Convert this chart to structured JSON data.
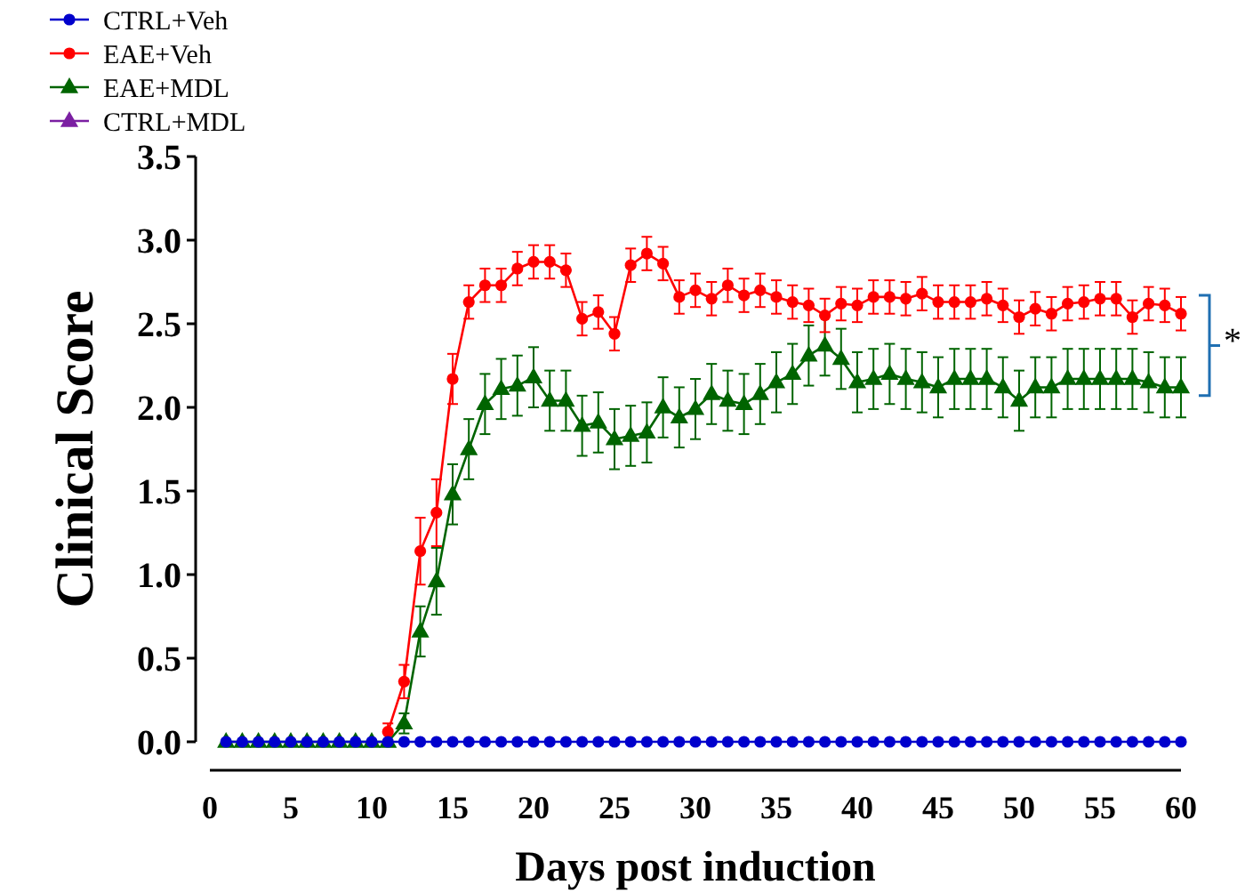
{
  "chart_data": {
    "type": "line",
    "xlabel": "Days post induction",
    "ylabel": "Clinical Score",
    "x": [
      1,
      2,
      3,
      4,
      5,
      6,
      7,
      8,
      9,
      10,
      11,
      12,
      13,
      14,
      15,
      16,
      17,
      18,
      19,
      20,
      21,
      22,
      23,
      24,
      25,
      26,
      27,
      28,
      29,
      30,
      31,
      32,
      33,
      34,
      35,
      36,
      37,
      38,
      39,
      40,
      41,
      42,
      43,
      44,
      45,
      46,
      47,
      48,
      49,
      50,
      51,
      52,
      53,
      54,
      55,
      56,
      57,
      58,
      59,
      60
    ],
    "xlim": [
      0,
      60
    ],
    "xticks": [
      0,
      5,
      10,
      15,
      20,
      25,
      30,
      35,
      40,
      45,
      50,
      55,
      60
    ],
    "ylim": [
      0,
      3.5
    ],
    "yticks": [
      {
        "value": 0,
        "label": "0.0"
      },
      {
        "value": 0.5,
        "label": "0.5"
      },
      {
        "value": 1,
        "label": "1.0"
      },
      {
        "value": 1.5,
        "label": "1.5"
      },
      {
        "value": 2,
        "label": "2.0"
      },
      {
        "value": 2.5,
        "label": "2.5"
      },
      {
        "value": 3,
        "label": "3.0"
      },
      {
        "value": 3.5,
        "label": "3.5"
      }
    ],
    "grid": false,
    "legend": "top left",
    "line_style": "solid",
    "annotations": [
      "*"
    ],
    "series": [
      {
        "name": "CTRL+Veh",
        "color": "#0000cc",
        "marker": "circle",
        "values": [
          0,
          0,
          0,
          0,
          0,
          0,
          0,
          0,
          0,
          0,
          0,
          0,
          0,
          0,
          0,
          0,
          0,
          0,
          0,
          0,
          0,
          0,
          0,
          0,
          0,
          0,
          0,
          0,
          0,
          0,
          0,
          0,
          0,
          0,
          0,
          0,
          0,
          0,
          0,
          0,
          0,
          0,
          0,
          0,
          0,
          0,
          0,
          0,
          0,
          0,
          0,
          0,
          0,
          0,
          0,
          0,
          0,
          0,
          0,
          0
        ]
      },
      {
        "name": "EAE+Veh",
        "color": "#ff0000",
        "marker": "circle",
        "values": [
          null,
          null,
          null,
          null,
          null,
          null,
          null,
          null,
          null,
          null,
          0.06,
          0.36,
          1.14,
          1.37,
          2.17,
          2.63,
          2.73,
          2.73,
          2.83,
          2.87,
          2.87,
          2.82,
          2.53,
          2.57,
          2.44,
          2.85,
          2.92,
          2.86,
          2.66,
          2.7,
          2.65,
          2.73,
          2.67,
          2.7,
          2.66,
          2.63,
          2.61,
          2.55,
          2.62,
          2.61,
          2.66,
          2.66,
          2.65,
          2.68,
          2.63,
          2.63,
          2.63,
          2.65,
          2.61,
          2.54,
          2.59,
          2.56,
          2.62,
          2.63,
          2.65,
          2.65,
          2.54,
          2.62,
          2.61,
          2.56
        ],
        "errors": [
          null,
          null,
          null,
          null,
          null,
          null,
          null,
          null,
          null,
          null,
          0.05,
          0.1,
          0.2,
          0.2,
          0.15,
          0.1,
          0.1,
          0.1,
          0.1,
          0.1,
          0.1,
          0.1,
          0.1,
          0.1,
          0.1,
          0.1,
          0.1,
          0.1,
          0.1,
          0.1,
          0.1,
          0.1,
          0.1,
          0.1,
          0.1,
          0.1,
          0.1,
          0.1,
          0.1,
          0.1,
          0.1,
          0.1,
          0.1,
          0.1,
          0.1,
          0.1,
          0.1,
          0.1,
          0.1,
          0.1,
          0.1,
          0.1,
          0.1,
          0.1,
          0.1,
          0.1,
          0.1,
          0.1,
          0.1,
          0.1
        ]
      },
      {
        "name": "EAE+MDL",
        "color": "#006400",
        "marker": "triangle",
        "values": [
          0,
          0,
          0,
          0,
          0,
          0,
          0,
          0,
          0,
          0,
          0,
          0.11,
          0.66,
          0.96,
          1.48,
          1.75,
          2.02,
          2.11,
          2.13,
          2.18,
          2.04,
          2.04,
          1.89,
          1.91,
          1.81,
          1.83,
          1.85,
          2.0,
          1.94,
          1.99,
          2.08,
          2.04,
          2.02,
          2.08,
          2.15,
          2.2,
          2.31,
          2.37,
          2.29,
          2.15,
          2.17,
          2.2,
          2.17,
          2.15,
          2.12,
          2.17,
          2.17,
          2.17,
          2.12,
          2.04,
          2.12,
          2.12,
          2.17,
          2.17,
          2.17,
          2.17,
          2.17,
          2.15,
          2.12,
          2.12
        ],
        "errors": [
          null,
          null,
          null,
          null,
          null,
          null,
          null,
          null,
          null,
          null,
          null,
          0.06,
          0.15,
          0.2,
          0.18,
          0.18,
          0.18,
          0.18,
          0.18,
          0.18,
          0.18,
          0.18,
          0.18,
          0.18,
          0.18,
          0.18,
          0.18,
          0.18,
          0.18,
          0.18,
          0.18,
          0.18,
          0.18,
          0.18,
          0.18,
          0.18,
          0.18,
          0.18,
          0.18,
          0.18,
          0.18,
          0.18,
          0.18,
          0.18,
          0.18,
          0.18,
          0.18,
          0.18,
          0.18,
          0.18,
          0.18,
          0.18,
          0.18,
          0.18,
          0.18,
          0.18,
          0.18,
          0.18,
          0.18,
          0.18
        ]
      },
      {
        "name": "CTRL+MDL",
        "color": "#7b1fa2",
        "marker": "triangle",
        "values": [
          null,
          null,
          null,
          null,
          null,
          null,
          null,
          null,
          null,
          null,
          null,
          null,
          null,
          null,
          null,
          null,
          null,
          null,
          null,
          null,
          null,
          null,
          null,
          null,
          null,
          null,
          null,
          null,
          null,
          null,
          null,
          null,
          null,
          null,
          null,
          null,
          null,
          null,
          null,
          null,
          null,
          null,
          null,
          null,
          null,
          null,
          null,
          null,
          null,
          null,
          null,
          null,
          null,
          null,
          null,
          null,
          null,
          null,
          null,
          null
        ]
      }
    ]
  }
}
